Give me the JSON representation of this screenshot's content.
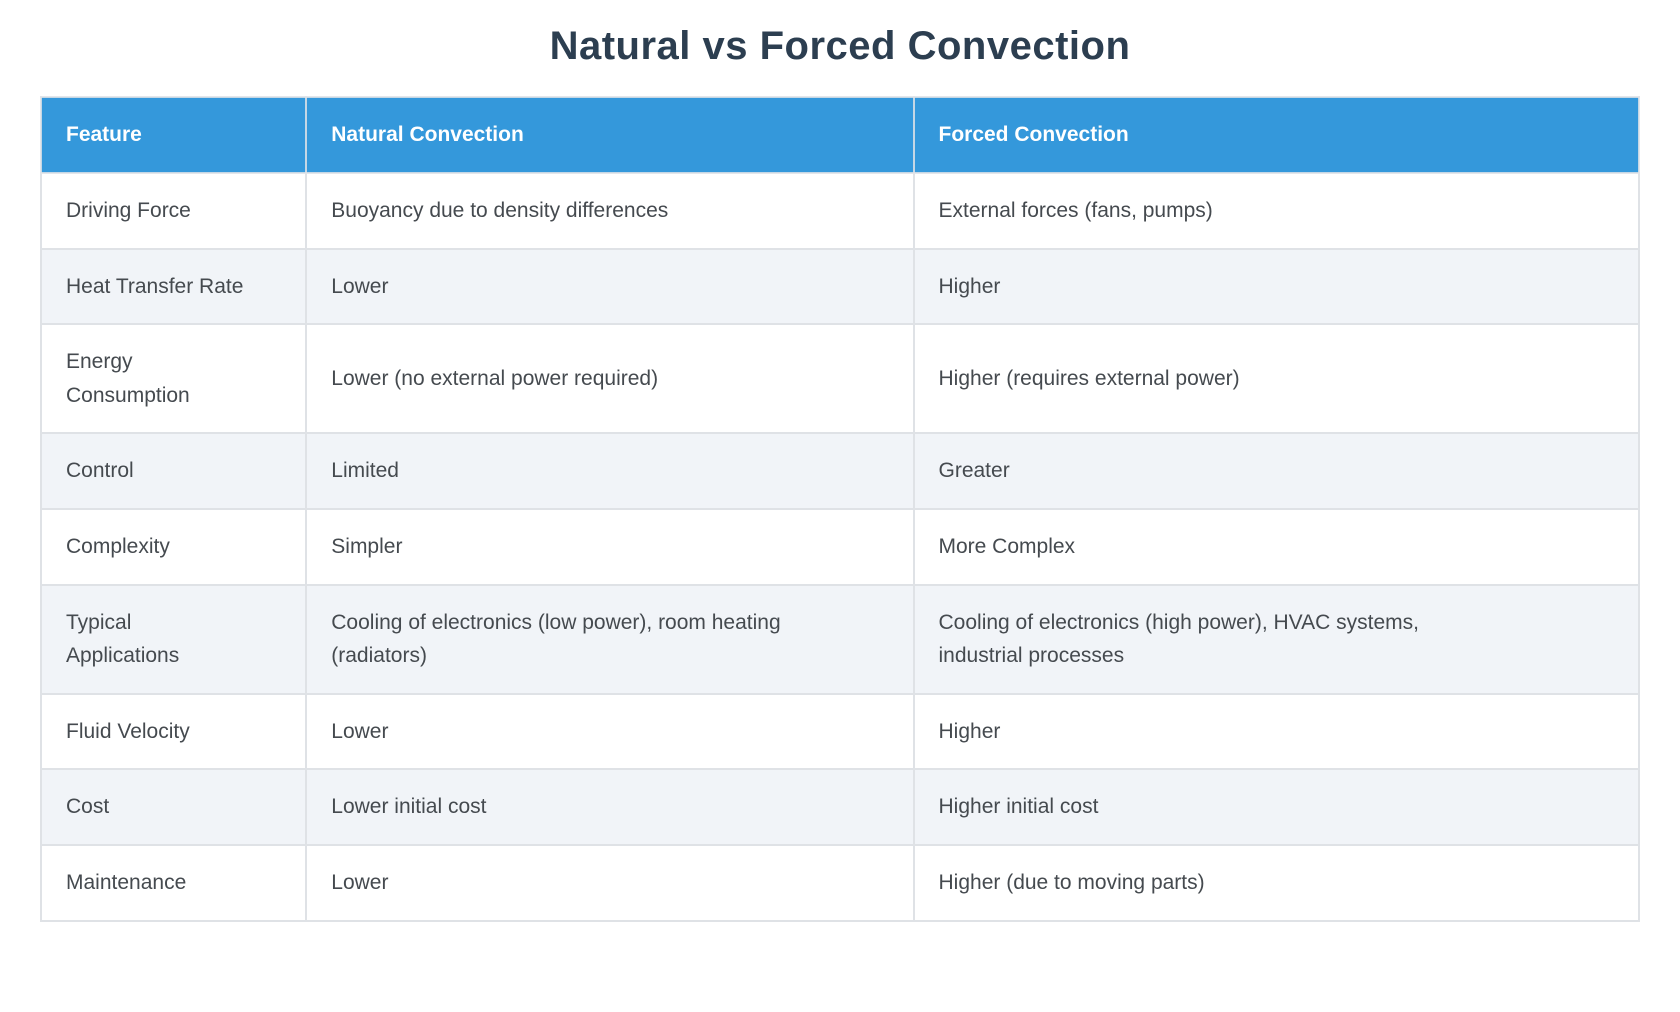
{
  "page": {
    "title": "Natural vs Forced Convection"
  },
  "colors": {
    "header_bg": "#3498db",
    "header_text": "#ffffff",
    "title_text": "#2c3e50",
    "body_text": "#454a4f",
    "row_bg": "#ffffff",
    "row_alt_bg": "#f1f4f8",
    "border": "#dfe2e6",
    "page_bg": "#ffffff"
  },
  "table": {
    "columns": [
      "Feature",
      "Natural Convection",
      "Forced Convection"
    ],
    "rows": [
      {
        "feature": "Driving Force",
        "natural": "Buoyancy due to density differences",
        "forced": "External forces (fans, pumps)"
      },
      {
        "feature": "Heat Transfer Rate",
        "natural": "Lower",
        "forced": "Higher"
      },
      {
        "feature": "Energy\nConsumption",
        "natural": "Lower (no external power required)",
        "forced": "Higher (requires external power)"
      },
      {
        "feature": "Control",
        "natural": "Limited",
        "forced": "Greater"
      },
      {
        "feature": "Complexity",
        "natural": "Simpler",
        "forced": "More Complex"
      },
      {
        "feature": "Typical\nApplications",
        "natural": "Cooling of electronics (low power), room heating\n(radiators)",
        "forced": "Cooling of electronics (high power), HVAC systems,\nindustrial processes"
      },
      {
        "feature": "Fluid Velocity",
        "natural": "Lower",
        "forced": "Higher"
      },
      {
        "feature": "Cost",
        "natural": "Lower initial cost",
        "forced": "Higher initial cost"
      },
      {
        "feature": "Maintenance",
        "natural": "Lower",
        "forced": "Higher (due to moving parts)"
      }
    ]
  }
}
